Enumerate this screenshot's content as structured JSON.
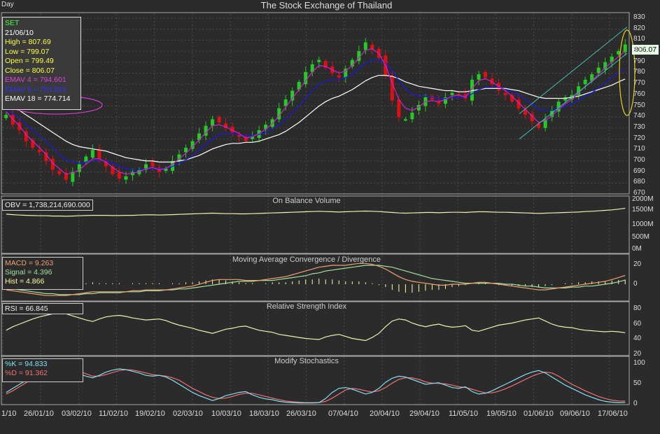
{
  "period": "Day",
  "title": "The Stock Exchange of Thailand",
  "info": {
    "symbol": "SET",
    "date": "21/06/10",
    "high": "High  = 807.69",
    "low": "Low  = 799.07",
    "open": "Open  = 799.49",
    "close": "Close  = 806.07",
    "emav4": "EMAV 4 = 794.601",
    "emav9": "EMAV 9 = 784.303",
    "emav18": "EMAV 18 = 774.714"
  },
  "last_price": "806.07",
  "panels": {
    "obv": {
      "title": "On Balance Volume",
      "label": "OBV = 1,738,214,690.000"
    },
    "macd": {
      "title": "Moving Average Convergence / Divergence",
      "macd": "MACD = 9.263",
      "signal": "Signal = 4.396",
      "hist": "Hist = 4.866"
    },
    "rsi": {
      "title": "Relative Strength Index",
      "label": "RSI = 66.845"
    },
    "stoch": {
      "title": "Modify Stochastics",
      "k": "%K = 94.833",
      "d": "%D = 91.362"
    }
  },
  "price_axis": [
    "830",
    "820",
    "810",
    "800",
    "790",
    "780",
    "770",
    "760",
    "750",
    "740",
    "730",
    "720",
    "710",
    "700",
    "690",
    "680",
    "670"
  ],
  "obv_axis": [
    "2000M",
    "1500M",
    "1000M",
    "500M",
    "0M"
  ],
  "macd_axis": [
    "20",
    "0"
  ],
  "rsi_axis": [
    "80",
    "60",
    "40",
    "20"
  ],
  "stoch_axis": [
    "100",
    "50",
    "0"
  ],
  "x_axis": [
    "1/10",
    "26/01/10",
    "03/02/10",
    "11/02/10",
    "19/02/10",
    "02/03/10",
    "10/03/10",
    "18/03/10",
    "26/03/10",
    "07/04/10",
    "20/04/10",
    "29/04/10",
    "11/05/10",
    "19/05/10",
    "01/06/10",
    "09/06/10",
    "17/06/10"
  ],
  "colors": {
    "up": "#22cc22",
    "down": "#e01010",
    "ema4": "#d020d0",
    "ema9": "#1818ee",
    "ema18": "#ffffff",
    "obv": "#f0f0b0",
    "macd": "#f0a070",
    "signal": "#a0e0a0",
    "rsi": "#f0f0b0",
    "k": "#80e0f0",
    "d": "#f07070",
    "channel": "#40c0b0",
    "grid": "#4a4a4a"
  },
  "chart_data": {
    "type": "candlestick",
    "close": [
      742,
      733,
      728,
      718,
      712,
      708,
      700,
      692,
      688,
      683,
      690,
      697,
      704,
      710,
      702,
      695,
      688,
      684,
      686,
      690,
      692,
      697,
      695,
      690,
      693,
      700,
      706,
      712,
      718,
      725,
      732,
      738,
      735,
      730,
      726,
      722,
      718,
      722,
      728,
      733,
      738,
      748,
      756,
      764,
      772,
      781,
      788,
      792,
      785,
      780,
      776,
      784,
      792,
      800,
      808,
      802,
      794,
      778,
      755,
      740,
      738,
      744,
      751,
      758,
      756,
      752,
      758,
      762,
      760,
      757,
      774,
      779,
      776,
      770,
      764,
      760,
      754,
      748,
      742,
      736,
      730,
      738,
      746,
      754,
      758,
      760,
      768,
      774,
      779,
      785,
      790,
      795,
      800,
      806.07
    ],
    "ema4": [
      745,
      738,
      732,
      724,
      718,
      712,
      706,
      698,
      693,
      688,
      689,
      692,
      697,
      702,
      702,
      699,
      694,
      690,
      688,
      689,
      690,
      693,
      694,
      692,
      693,
      697,
      702,
      707,
      713,
      719,
      726,
      732,
      733,
      731,
      728,
      725,
      721,
      722,
      725,
      729,
      734,
      741,
      749,
      757,
      765,
      773,
      781,
      787,
      786,
      783,
      780,
      782,
      787,
      794,
      801,
      802,
      798,
      787,
      771,
      756,
      748,
      746,
      749,
      754,
      755,
      754,
      756,
      759,
      760,
      758,
      766,
      773,
      775,
      772,
      768,
      764,
      759,
      753,
      747,
      741,
      735,
      737,
      741,
      747,
      752,
      756,
      762,
      768,
      773,
      779,
      785,
      790,
      795,
      800
    ],
    "ema9": [
      748,
      743,
      739,
      733,
      728,
      723,
      718,
      712,
      706,
      701,
      699,
      698,
      699,
      701,
      701,
      700,
      698,
      695,
      693,
      692,
      692,
      693,
      693,
      693,
      693,
      695,
      698,
      701,
      705,
      710,
      715,
      720,
      724,
      725,
      725,
      724,
      723,
      723,
      724,
      726,
      729,
      733,
      738,
      744,
      750,
      757,
      764,
      770,
      773,
      774,
      774,
      776,
      779,
      784,
      789,
      792,
      792,
      789,
      782,
      773,
      766,
      761,
      759,
      759,
      758,
      757,
      757,
      758,
      758,
      758,
      761,
      765,
      767,
      767,
      767,
      765,
      763,
      760,
      756,
      752,
      747,
      746,
      746,
      748,
      750,
      752,
      755,
      759,
      762,
      767,
      771,
      776,
      780,
      784.3
    ],
    "ema18": [
      752,
      749,
      746,
      742,
      738,
      734,
      730,
      726,
      722,
      718,
      715,
      713,
      712,
      711,
      710,
      709,
      707,
      705,
      703,
      702,
      701,
      700,
      700,
      699,
      699,
      699,
      700,
      701,
      703,
      705,
      708,
      711,
      713,
      715,
      716,
      716,
      717,
      717,
      718,
      720,
      722,
      724,
      727,
      731,
      735,
      740,
      745,
      750,
      754,
      757,
      759,
      762,
      765,
      769,
      773,
      776,
      778,
      778,
      777,
      775,
      772,
      770,
      768,
      767,
      766,
      765,
      764,
      764,
      763,
      763,
      764,
      765,
      766,
      766,
      766,
      766,
      765,
      764,
      762,
      760,
      758,
      757,
      757,
      757,
      757,
      758,
      759,
      761,
      763,
      765,
      767,
      769,
      772,
      774.7
    ],
    "obv": [
      1490,
      1470,
      1450,
      1440,
      1430,
      1420,
      1420,
      1410,
      1410,
      1400,
      1410,
      1420,
      1430,
      1440,
      1440,
      1440,
      1430,
      1430,
      1440,
      1440,
      1450,
      1460,
      1460,
      1450,
      1460,
      1470,
      1480,
      1490,
      1500,
      1510,
      1520,
      1530,
      1520,
      1510,
      1510,
      1500,
      1500,
      1510,
      1520,
      1530,
      1540,
      1550,
      1560,
      1570,
      1580,
      1590,
      1600,
      1610,
      1600,
      1590,
      1580,
      1590,
      1600,
      1610,
      1620,
      1610,
      1600,
      1580,
      1560,
      1540,
      1530,
      1540,
      1550,
      1560,
      1560,
      1550,
      1560,
      1570,
      1570,
      1560,
      1580,
      1590,
      1590,
      1580,
      1570,
      1570,
      1560,
      1550,
      1540,
      1530,
      1520,
      1530,
      1540,
      1550,
      1560,
      1570,
      1580,
      1600,
      1610,
      1630,
      1650,
      1670,
      1700,
      1738
    ],
    "macd": [
      -6,
      -7,
      -8,
      -9,
      -10,
      -11,
      -12,
      -12,
      -12,
      -12,
      -11,
      -10,
      -9,
      -8,
      -8,
      -8,
      -8,
      -8,
      -8,
      -7,
      -7,
      -6,
      -6,
      -6,
      -6,
      -5,
      -4,
      -3,
      -2,
      0,
      2,
      4,
      5,
      5,
      5,
      5,
      4,
      4,
      4,
      5,
      6,
      7,
      8,
      10,
      12,
      14,
      16,
      18,
      19,
      20,
      20,
      20,
      21,
      22,
      22,
      21,
      19,
      16,
      12,
      8,
      5,
      3,
      2,
      1,
      0,
      -1,
      -1,
      0,
      0,
      0,
      1,
      2,
      2,
      1,
      0,
      -1,
      -2,
      -3,
      -4,
      -5,
      -6,
      -6,
      -5,
      -4,
      -3,
      -2,
      -1,
      0,
      1,
      2,
      3,
      5,
      7,
      9.3
    ],
    "signal": [
      -4,
      -5,
      -6,
      -7,
      -8,
      -9,
      -10,
      -10,
      -11,
      -11,
      -11,
      -11,
      -10,
      -10,
      -9,
      -9,
      -9,
      -9,
      -8,
      -8,
      -8,
      -7,
      -7,
      -7,
      -6,
      -6,
      -5,
      -5,
      -4,
      -3,
      -2,
      -1,
      0,
      1,
      2,
      3,
      3,
      3,
      4,
      4,
      4,
      5,
      6,
      7,
      8,
      9,
      11,
      12,
      14,
      15,
      16,
      17,
      18,
      19,
      20,
      20,
      20,
      19,
      18,
      16,
      14,
      12,
      10,
      8,
      6,
      5,
      4,
      3,
      2,
      1,
      1,
      1,
      1,
      1,
      1,
      0,
      0,
      -1,
      -2,
      -2,
      -3,
      -4,
      -4,
      -4,
      -4,
      -3,
      -3,
      -2,
      -2,
      -1,
      0,
      1,
      2.5,
      4.4
    ],
    "rsi": [
      62,
      55,
      50,
      45,
      40,
      36,
      33,
      30,
      28,
      30,
      34,
      38,
      42,
      45,
      40,
      36,
      34,
      33,
      35,
      38,
      40,
      42,
      41,
      40,
      43,
      48,
      52,
      55,
      58,
      62,
      65,
      68,
      64,
      60,
      58,
      55,
      54,
      58,
      62,
      64,
      66,
      70,
      72,
      74,
      76,
      78,
      79,
      80,
      75,
      72,
      70,
      74,
      78,
      80,
      82,
      76,
      68,
      55,
      44,
      40,
      42,
      48,
      52,
      55,
      52,
      50,
      54,
      56,
      55,
      53,
      62,
      64,
      60,
      56,
      52,
      50,
      48,
      45,
      42,
      40,
      38,
      44,
      50,
      54,
      56,
      57,
      60,
      62,
      63,
      64,
      65,
      64,
      65,
      66.8
    ],
    "stoch_k": [
      70,
      60,
      50,
      40,
      30,
      22,
      16,
      12,
      10,
      12,
      18,
      24,
      30,
      34,
      28,
      20,
      15,
      12,
      14,
      18,
      22,
      28,
      30,
      28,
      32,
      40,
      50,
      60,
      70,
      78,
      84,
      90,
      85,
      78,
      74,
      70,
      68,
      76,
      82,
      86,
      88,
      92,
      94,
      95,
      96,
      96,
      96,
      95,
      85,
      70,
      60,
      58,
      62,
      68,
      74,
      70,
      60,
      45,
      35,
      30,
      32,
      38,
      44,
      50,
      48,
      46,
      52,
      58,
      60,
      56,
      68,
      74,
      72,
      66,
      58,
      50,
      42,
      34,
      26,
      20,
      16,
      22,
      32,
      42,
      52,
      60,
      68,
      76,
      82,
      88,
      92,
      94,
      95,
      94.8
    ],
    "stoch_d": [
      74,
      66,
      56,
      46,
      36,
      28,
      20,
      14,
      12,
      12,
      14,
      18,
      24,
      30,
      30,
      26,
      21,
      16,
      14,
      15,
      18,
      22,
      26,
      28,
      30,
      34,
      40,
      50,
      60,
      68,
      76,
      82,
      85,
      84,
      80,
      75,
      72,
      72,
      76,
      80,
      84,
      88,
      91,
      93,
      94,
      95,
      95,
      95,
      92,
      84,
      74,
      64,
      60,
      62,
      66,
      69,
      66,
      58,
      47,
      38,
      34,
      34,
      38,
      44,
      47,
      48,
      49,
      52,
      56,
      58,
      62,
      67,
      71,
      71,
      67,
      61,
      54,
      46,
      38,
      30,
      24,
      20,
      22,
      30,
      40,
      50,
      58,
      66,
      73,
      80,
      85,
      89,
      91,
      91.4
    ],
    "y_range_price": [
      670,
      830
    ],
    "x_labels": [
      "1/10",
      "26/01/10",
      "03/02/10",
      "11/02/10",
      "19/02/10",
      "02/03/10",
      "10/03/10",
      "18/03/10",
      "26/03/10",
      "07/04/10",
      "20/04/10",
      "29/04/10",
      "11/05/10",
      "19/05/10",
      "01/06/10",
      "09/06/10",
      "17/06/10"
    ]
  }
}
